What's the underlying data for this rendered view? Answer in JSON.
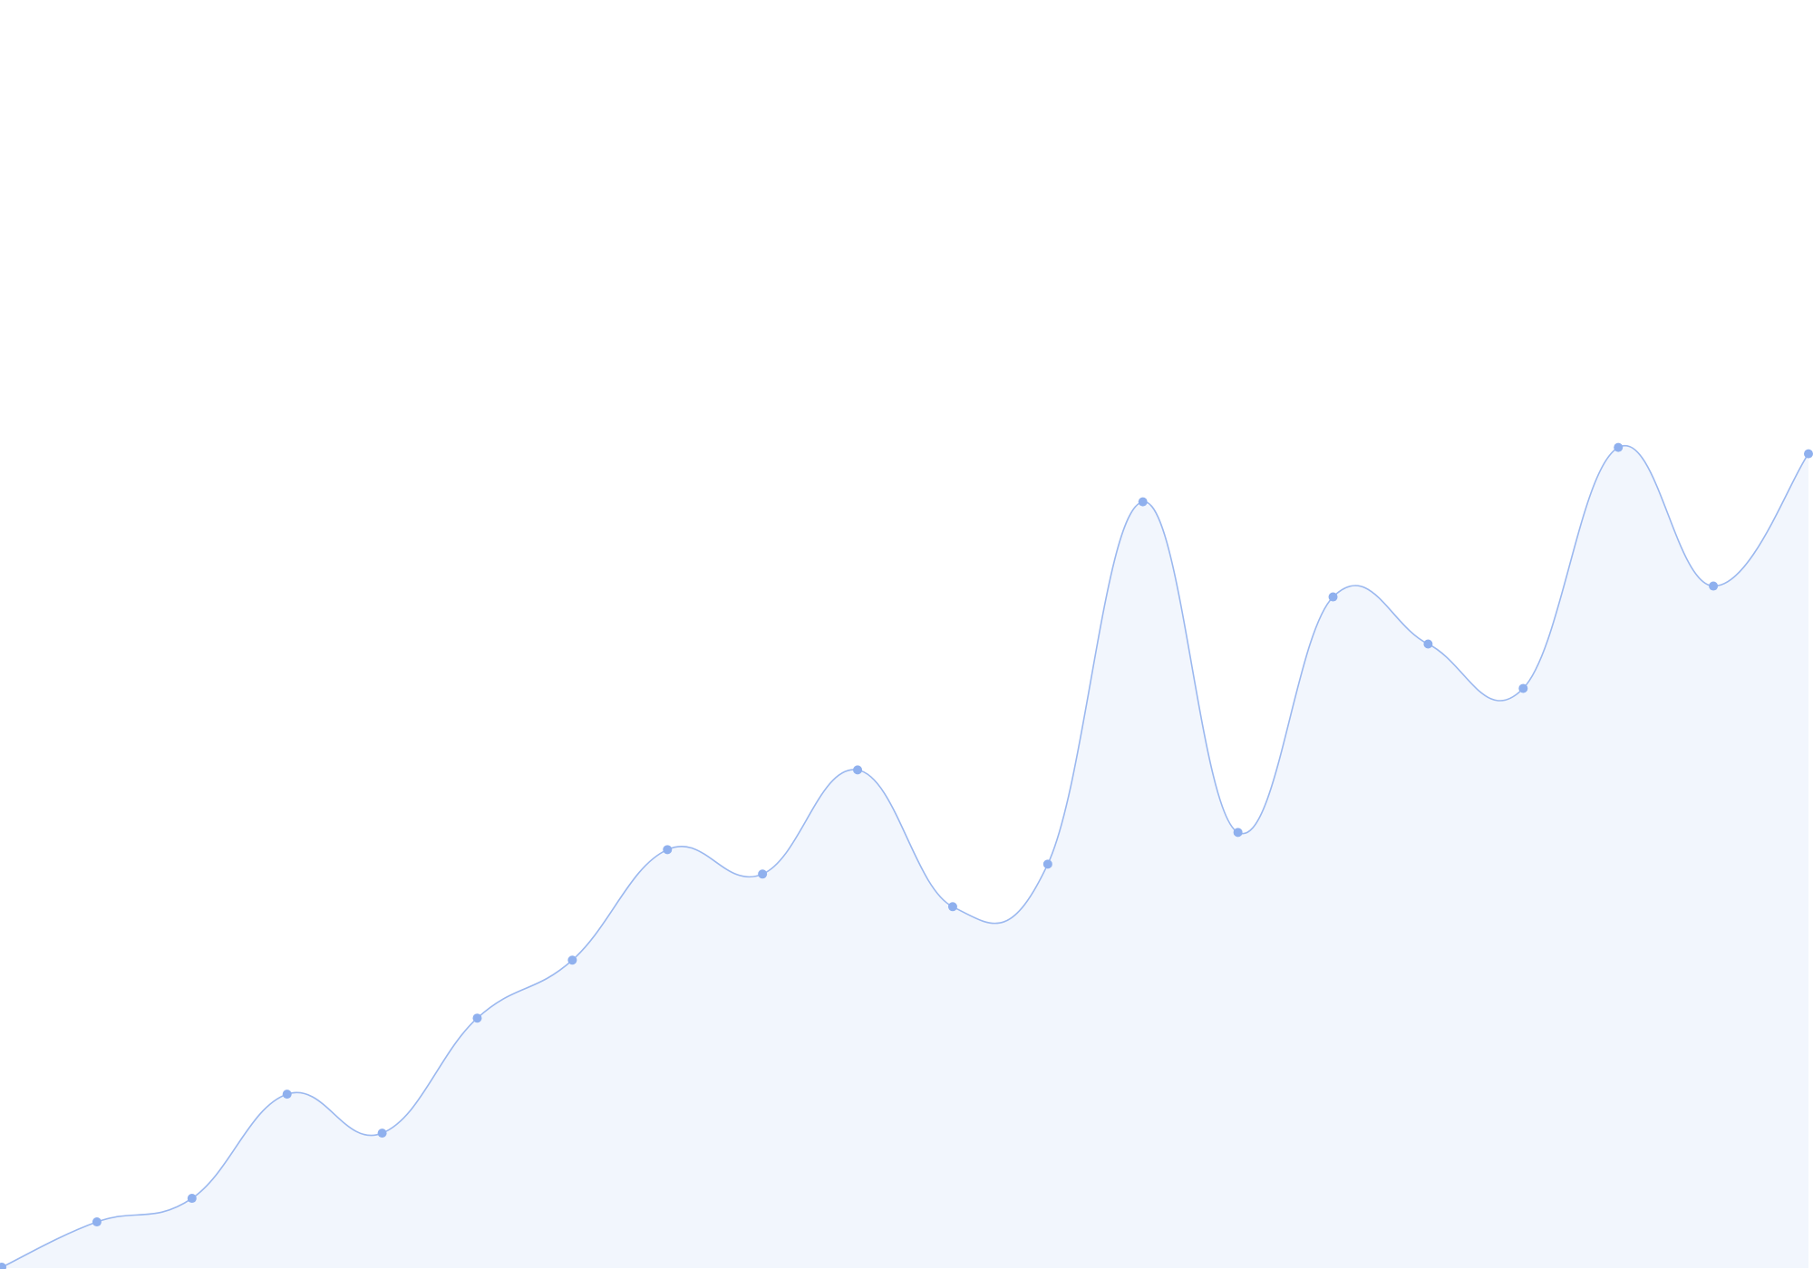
{
  "chart_data": {
    "type": "area",
    "title": "",
    "xlabel": "",
    "ylabel": "",
    "x": [
      0,
      1,
      2,
      3,
      4,
      5,
      6,
      7,
      8,
      9,
      10,
      11,
      12,
      13,
      14,
      15,
      16,
      17,
      18,
      19
    ],
    "series": [
      {
        "values": [
          1,
          51,
          77,
          192,
          149,
          276,
          340,
          462,
          435,
          550,
          399,
          446,
          846,
          481,
          741,
          689,
          640,
          906,
          753,
          899
        ]
      }
    ],
    "ylim": [
      0,
      1400
    ],
    "grid": false,
    "legend": "none",
    "colors": {
      "line": "#9bb8ef",
      "fill": "#f2f6fd",
      "marker": "#8fb0ee"
    }
  }
}
